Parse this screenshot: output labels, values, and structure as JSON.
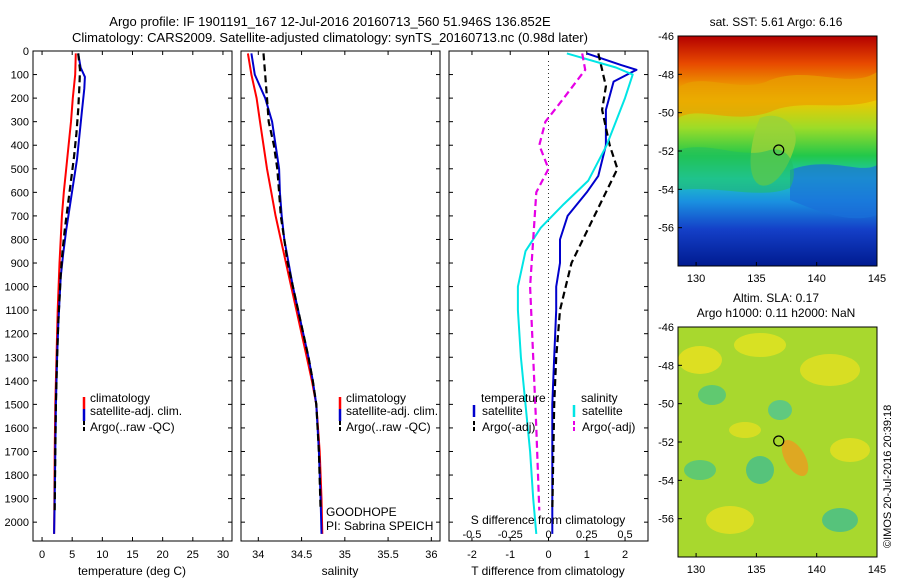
{
  "header": {
    "line1": "Argo profile: IF 1901191_167 12-Jul-2016 20160713_560 51.946S 136.852E",
    "line2": "Climatology: CARS2009. Satellite-adjusted climatology: synTS_20160713.nc (0.98d later)"
  },
  "colors": {
    "climatology": "#ff0000",
    "satellite": "#0000cc",
    "argo": "#000000",
    "s_satellite": "#00e5e5",
    "s_argo": "#e600e6"
  },
  "chart_data": [
    {
      "type": "line",
      "id": "temperature-profile",
      "xlabel": "temperature (deg C)",
      "xlim": [
        -1.5,
        31.5
      ],
      "ylim": [
        0,
        2080
      ],
      "y_reversed": true,
      "xticks": [
        "0",
        "5",
        "10",
        "15",
        "20",
        "25",
        "30"
      ],
      "yticks": [
        "0",
        "100",
        "200",
        "300",
        "400",
        "500",
        "600",
        "700",
        "800",
        "900",
        "1000",
        "1100",
        "1200",
        "1300",
        "1400",
        "1500",
        "1600",
        "1700",
        "1800",
        "1900",
        "2000"
      ],
      "legend": {
        "placement": "lower-center",
        "entries": [
          "climatology",
          "satellite-adj. clim.",
          "Argo(..raw -QC)"
        ]
      },
      "series": [
        {
          "name": "climatology",
          "style": "solid",
          "color_key": "climatology",
          "x": [
            5.6,
            5.5,
            5.3,
            5.1,
            4.8,
            4.4,
            4.0,
            3.6,
            3.3,
            3.1,
            2.9,
            2.75,
            2.6,
            2.5,
            2.4,
            2.3,
            2.2,
            2.1,
            2.05,
            2.0
          ],
          "y": [
            10,
            100,
            150,
            200,
            300,
            400,
            500,
            600,
            700,
            800,
            900,
            1000,
            1100,
            1200,
            1300,
            1400,
            1500,
            1700,
            1900,
            2050
          ]
        },
        {
          "name": "satellite-adj. clim.",
          "style": "solid",
          "color_key": "satellite",
          "x": [
            6.0,
            6.4,
            7.1,
            7.0,
            6.6,
            6.2,
            5.8,
            5.2,
            4.6,
            4.0,
            3.5,
            3.1,
            2.9,
            2.7,
            2.5,
            2.4,
            2.3,
            2.2,
            2.1,
            2.0
          ],
          "y": [
            10,
            70,
            110,
            160,
            260,
            360,
            460,
            560,
            660,
            760,
            860,
            960,
            1060,
            1160,
            1300,
            1400,
            1500,
            1700,
            1900,
            2050
          ]
        },
        {
          "name": "Argo(..raw -QC)",
          "style": "dashed",
          "color_key": "argo",
          "x": [
            6.0,
            6.3,
            6.2,
            6.0,
            5.7,
            5.3,
            4.8,
            4.3,
            3.8,
            3.4,
            3.1,
            2.9,
            2.7,
            2.5,
            2.4,
            2.3,
            2.2,
            2.1
          ],
          "y": [
            10,
            80,
            150,
            250,
            350,
            450,
            550,
            650,
            750,
            850,
            950,
            1050,
            1150,
            1300,
            1400,
            1500,
            1700,
            1950
          ]
        }
      ]
    },
    {
      "type": "line",
      "id": "salinity-profile",
      "xlabel": "salinity",
      "xlim": [
        33.8,
        36.1
      ],
      "ylim": [
        0,
        2080
      ],
      "y_reversed": true,
      "xticks": [
        "34",
        "34.5",
        "35",
        "35.5",
        "36"
      ],
      "legend": {
        "placement": "lower-center",
        "entries": [
          "climatology",
          "satellite-adj. clim.",
          "Argo(..raw -QC)"
        ]
      },
      "annotation": [
        "GOODHOPE",
        "PI: Sabrina SPEICH"
      ],
      "series": [
        {
          "name": "climatology",
          "style": "solid",
          "color_key": "climatology",
          "x": [
            33.88,
            33.92,
            33.98,
            34.02,
            34.06,
            34.1,
            34.15,
            34.2,
            34.26,
            34.32,
            34.38,
            34.44,
            34.5,
            34.56,
            34.62,
            34.67,
            34.71,
            34.73,
            34.74
          ],
          "y": [
            10,
            100,
            200,
            300,
            400,
            500,
            600,
            700,
            800,
            900,
            1000,
            1100,
            1200,
            1300,
            1400,
            1500,
            1700,
            1900,
            2050
          ]
        },
        {
          "name": "satellite-adj. clim.",
          "style": "solid",
          "color_key": "satellite",
          "x": [
            33.92,
            33.96,
            34.08,
            34.16,
            34.2,
            34.24,
            34.25,
            34.27,
            34.3,
            34.35,
            34.4,
            34.46,
            34.52,
            34.58,
            34.63,
            34.67,
            34.7,
            34.72,
            34.73
          ],
          "y": [
            10,
            100,
            200,
            300,
            400,
            500,
            600,
            700,
            800,
            900,
            1000,
            1100,
            1200,
            1300,
            1400,
            1500,
            1700,
            1900,
            2050
          ]
        },
        {
          "name": "Argo(..raw -QC)",
          "style": "dashed",
          "color_key": "argo",
          "x": [
            34.06,
            34.08,
            34.1,
            34.12,
            34.18,
            34.22,
            34.24,
            34.26,
            34.3,
            34.34,
            34.4,
            34.46,
            34.52,
            34.58,
            34.63,
            34.67,
            34.7,
            34.72
          ],
          "y": [
            10,
            100,
            200,
            300,
            400,
            500,
            600,
            700,
            800,
            900,
            1000,
            1100,
            1200,
            1300,
            1400,
            1500,
            1700,
            1950
          ]
        }
      ]
    },
    {
      "type": "line",
      "id": "difference-profile",
      "xlabel": "T difference from climatology",
      "top_axis_label": "S difference from climatology",
      "xlim": [
        -2.6,
        2.6
      ],
      "ylim": [
        0,
        2080
      ],
      "y_reversed": true,
      "xticks": [
        "-2",
        "-1",
        "0",
        "1",
        "2"
      ],
      "s_xticks": [
        "-0.5",
        "-0.25",
        "0",
        "0.25",
        "0.5"
      ],
      "legend": {
        "placement": "lower-center",
        "temperature_heading": "temperature",
        "salinity_heading": "salinity",
        "entries": [
          "satellite",
          "Argo(-adj)",
          "satellite",
          "Argo(-adj)"
        ]
      },
      "series": [
        {
          "name": "satellite",
          "group": "temperature",
          "style": "solid",
          "color_key": "satellite",
          "x": [
            1.0,
            1.9,
            2.3,
            1.7,
            1.5,
            1.5,
            1.3,
            1.0,
            0.5,
            0.3,
            0.3,
            0.2,
            0.2,
            0.15,
            0.1,
            0.1,
            0.1,
            0.1
          ],
          "y": [
            10,
            60,
            80,
            130,
            250,
            400,
            530,
            600,
            700,
            800,
            900,
            1000,
            1100,
            1300,
            1500,
            1700,
            1900,
            2050
          ]
        },
        {
          "name": "Argo(-adj)",
          "group": "temperature",
          "style": "dashed",
          "color_key": "argo",
          "x": [
            1.3,
            1.4,
            1.5,
            1.4,
            1.6,
            1.8,
            1.5,
            1.2,
            0.9,
            0.6,
            0.45,
            0.3,
            0.2,
            0.15,
            0.1
          ],
          "y": [
            10,
            80,
            150,
            250,
            400,
            500,
            600,
            700,
            800,
            900,
            1000,
            1100,
            1300,
            1500,
            1950
          ]
        },
        {
          "name": "satellite",
          "group": "salinity",
          "style": "solid",
          "color_key": "s_satellite",
          "x": [
            0.12,
            0.44,
            0.55,
            0.5,
            0.38,
            0.26,
            0.1,
            -0.05,
            -0.15,
            -0.2,
            -0.2,
            -0.18,
            -0.15,
            -0.12,
            -0.1,
            -0.08
          ],
          "y": [
            10,
            70,
            100,
            200,
            400,
            550,
            650,
            750,
            850,
            1000,
            1100,
            1300,
            1500,
            1700,
            1900,
            2050
          ]
        },
        {
          "name": "Argo(-adj)",
          "group": "salinity",
          "style": "dashed",
          "color_key": "s_argo",
          "x": [
            0.22,
            0.24,
            0.1,
            -0.02,
            -0.06,
            0.0,
            -0.08,
            -0.1,
            -0.12,
            -0.1,
            -0.08,
            -0.06
          ],
          "y": [
            10,
            80,
            200,
            300,
            400,
            500,
            600,
            800,
            1000,
            1300,
            1600,
            1950
          ]
        }
      ]
    },
    {
      "type": "heatmap",
      "id": "sst-map",
      "title": "sat. SST: 5.61  Argo: 6.16",
      "xlim": [
        128.5,
        145
      ],
      "ylim": [
        -58,
        -46
      ],
      "xticks": [
        "130",
        "135",
        "140",
        "145"
      ],
      "yticks": [
        "-46",
        "-48",
        "-50",
        "-52",
        "-54",
        "-56"
      ],
      "profile_location": {
        "lon": 136.852,
        "lat": -51.946
      }
    },
    {
      "type": "heatmap",
      "id": "sla-map",
      "title_lines": [
        "Altim. SLA: 0.17",
        "Argo h1000: 0.11  h2000: NaN"
      ],
      "xlim": [
        128.5,
        145
      ],
      "ylim": [
        -58,
        -46
      ],
      "xticks": [
        "130",
        "135",
        "140",
        "145"
      ],
      "yticks": [
        "-46",
        "-48",
        "-50",
        "-52",
        "-54",
        "-56"
      ],
      "profile_location": {
        "lon": 136.852,
        "lat": -51.946
      },
      "credit": "©IMOS 20-Jul-2016 20:39:18"
    }
  ]
}
